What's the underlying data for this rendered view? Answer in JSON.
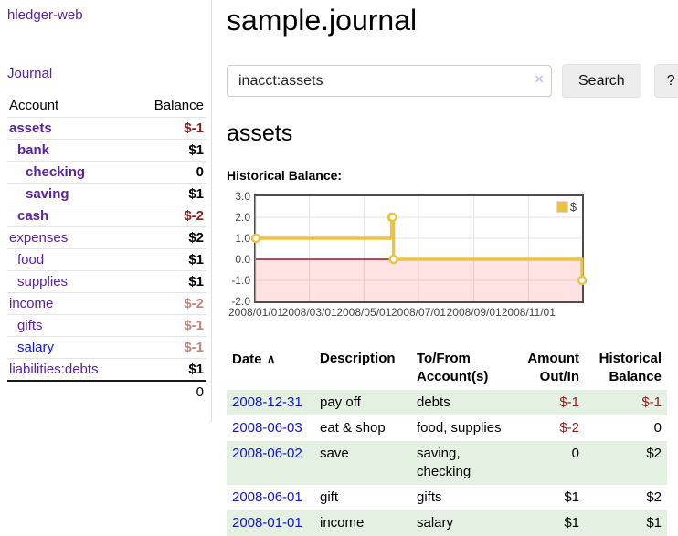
{
  "app": {
    "brand": "hledger-web",
    "nav_journal": "Journal"
  },
  "sidebar": {
    "accounts_header": {
      "account": "Account",
      "balance": "Balance"
    },
    "accounts": [
      {
        "name": "assets",
        "indent": 1,
        "bold": true,
        "balance": "$-1",
        "balance_style": "neg-dark"
      },
      {
        "name": "bank",
        "indent": 2,
        "bold": true,
        "balance": "$1",
        "balance_style": "pos"
      },
      {
        "name": "checking",
        "indent": 3,
        "bold": true,
        "balance": "0",
        "balance_style": "pos"
      },
      {
        "name": "saving",
        "indent": 3,
        "bold": true,
        "balance": "$1",
        "balance_style": "pos"
      },
      {
        "name": "cash",
        "indent": 2,
        "bold": true,
        "balance": "$-2",
        "balance_style": "neg-dark"
      },
      {
        "name": "expenses",
        "indent": 1,
        "bold": false,
        "balance": "$2",
        "balance_style": "pos"
      },
      {
        "name": "food",
        "indent": 2,
        "bold": false,
        "balance": "$1",
        "balance_style": "pos"
      },
      {
        "name": "supplies",
        "indent": 2,
        "bold": false,
        "balance": "$1",
        "balance_style": "pos"
      },
      {
        "name": "income",
        "indent": 1,
        "bold": false,
        "balance": "$-2",
        "balance_style": "neg-light"
      },
      {
        "name": "gifts",
        "indent": 2,
        "bold": false,
        "balance": "$-1",
        "balance_style": "neg-light"
      },
      {
        "name": "salary",
        "indent": 2,
        "bold": false,
        "unvisited": true,
        "balance": "$-1",
        "balance_style": "neg-light"
      },
      {
        "name": "liabilities:debts",
        "indent": 1,
        "bold": false,
        "balance": "$1",
        "balance_style": "pos"
      }
    ],
    "total": "0"
  },
  "header": {
    "title": "sample.journal"
  },
  "search": {
    "value": "inacct:assets",
    "clear_icon": "×",
    "button": "Search",
    "help_button": "?"
  },
  "account_page": {
    "heading": "assets",
    "chart_label": "Historical Balance:"
  },
  "chart_data": {
    "type": "line",
    "step": true,
    "title": "Historical Balance",
    "legend": "$",
    "legend_position": "top-right",
    "grid": true,
    "series": [
      {
        "name": "$",
        "color": "#edc240",
        "points": [
          [
            "2008-01-01",
            1
          ],
          [
            "2008-06-01",
            2
          ],
          [
            "2008-06-02",
            2
          ],
          [
            "2008-06-03",
            0
          ],
          [
            "2008-12-31",
            -1
          ]
        ]
      }
    ],
    "xrange": [
      "2008-01-01",
      "2008-12-31"
    ],
    "ylim": [
      -2,
      3
    ],
    "yticks": [
      "3.0",
      "2.0",
      "1.0",
      "0.0",
      "-1.0",
      "-2.0"
    ],
    "ytick_values": [
      3,
      2,
      1,
      0,
      -1,
      -2
    ],
    "xticks": [
      "2008/01/01",
      "2008/03/01",
      "2008/05/01",
      "2008/07/01",
      "2008/09/01",
      "2008/11/01"
    ],
    "negative_region_fill": "#f8d7d7",
    "zero_line_color": "#8b1a1a"
  },
  "register": {
    "columns": [
      {
        "label": "Date",
        "sort_icon": "∧",
        "align": "left",
        "sortable": true
      },
      {
        "label": "Description",
        "align": "left",
        "sortable": false
      },
      {
        "label": "To/From Account(s)",
        "align": "left",
        "sortable": false
      },
      {
        "label": "Amount Out/In",
        "align": "right",
        "sortable": false
      },
      {
        "label": "Historical Balance",
        "align": "right",
        "sortable": false
      }
    ],
    "rows": [
      {
        "date": "2008-12-31",
        "description": "pay off",
        "accounts": "debts",
        "amount": "$-1",
        "amount_neg": true,
        "balance": "$-1",
        "balance_neg": true
      },
      {
        "date": "2008-06-03",
        "description": "eat & shop",
        "accounts": "food, supplies",
        "amount": "$-2",
        "amount_neg": true,
        "balance": "0",
        "balance_neg": false
      },
      {
        "date": "2008-06-02",
        "description": "save",
        "accounts": "saving, checking",
        "amount": "0",
        "amount_neg": false,
        "balance": "$2",
        "balance_neg": false
      },
      {
        "date": "2008-06-01",
        "description": "gift",
        "accounts": "gifts",
        "amount": "$1",
        "amount_neg": false,
        "balance": "$2",
        "balance_neg": false
      },
      {
        "date": "2008-01-01",
        "description": "income",
        "accounts": "salary",
        "amount": "$1",
        "amount_neg": false,
        "balance": "$1",
        "balance_neg": false
      }
    ]
  }
}
